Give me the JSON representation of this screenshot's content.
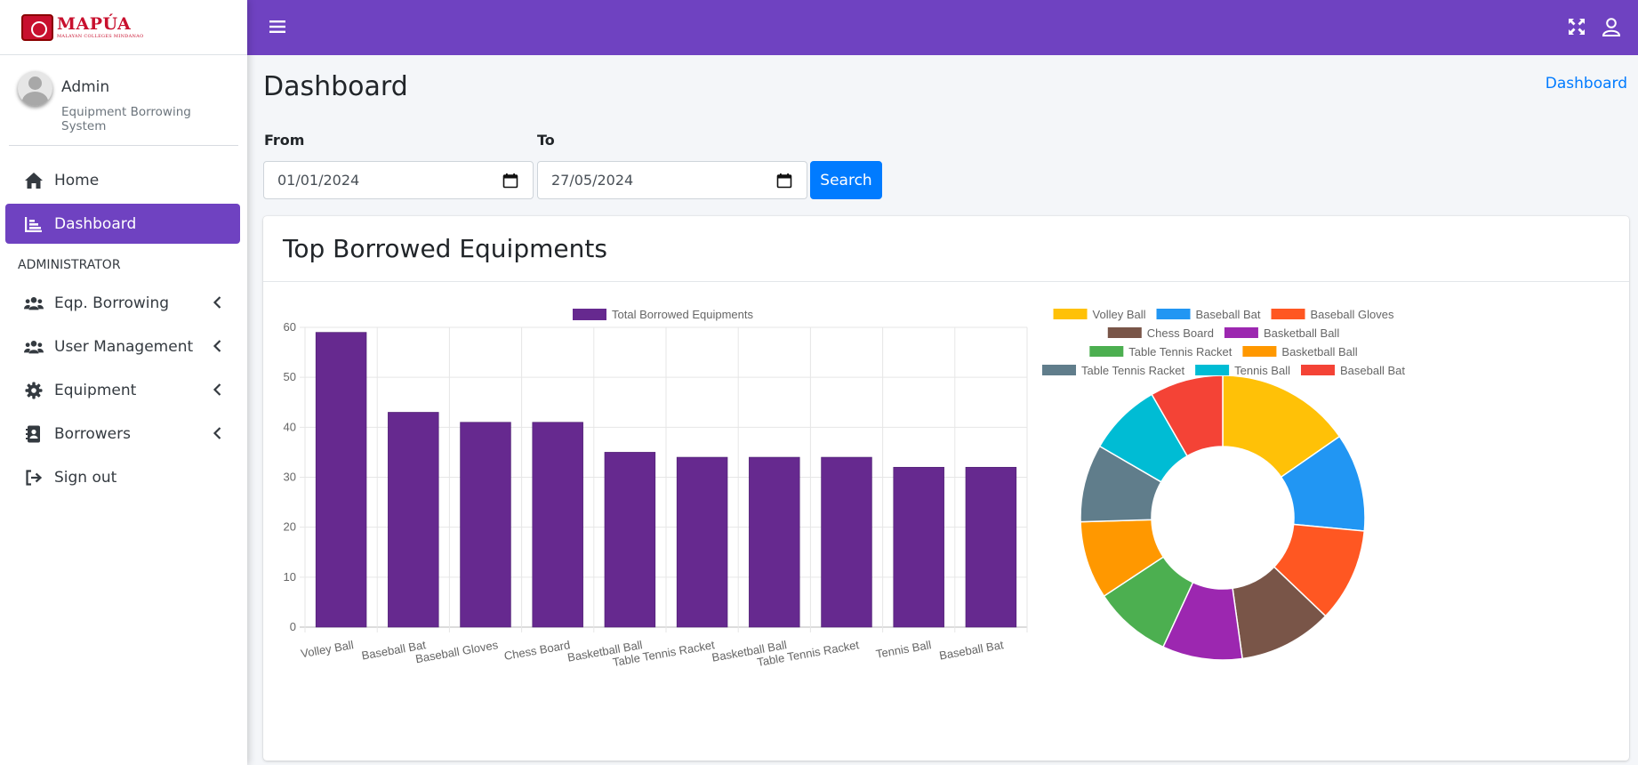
{
  "brand": {
    "name": "MAPÚA",
    "sub": "MALAYAN COLLEGES MINDANAO"
  },
  "user": {
    "name": "Admin",
    "subtitle": "Equipment Borrowing System"
  },
  "nav": {
    "home": "Home",
    "dashboard": "Dashboard",
    "section_header": "ADMINISTRATOR",
    "borrowing": "Eqp. Borrowing",
    "user_management": "User Management",
    "equipment": "Equipment",
    "borrowers": "Borrowers",
    "sign_out": "Sign out"
  },
  "page": {
    "title": "Dashboard",
    "breadcrumb": "Dashboard"
  },
  "filters": {
    "from_label": "From",
    "to_label": "To",
    "from_value": "01/01/2024",
    "to_value": "27/05/2024",
    "search_label": "Search"
  },
  "card": {
    "title": "Top Borrowed Equipments"
  },
  "colors": {
    "primary": "#6f42c1",
    "bar": "#66298f",
    "button": "#007bff"
  },
  "chart_data": [
    {
      "type": "bar",
      "legend": [
        "Total Borrowed Equipments"
      ],
      "legend_position": "top",
      "categories": [
        "Volley Ball",
        "Baseball Bat",
        "Baseball Gloves",
        "Chess Board",
        "Basketball Ball",
        "Table Tennis Racket",
        "Basketball Ball",
        "Table Tennis Racket",
        "Tennis Ball",
        "Baseball Bat"
      ],
      "series": [
        {
          "name": "Total Borrowed Equipments",
          "values": [
            59,
            43,
            41,
            41,
            35,
            34,
            34,
            34,
            32,
            32
          ]
        }
      ],
      "ylim": [
        0,
        60
      ],
      "yticks": [
        0,
        10,
        20,
        30,
        40,
        50,
        60
      ],
      "grid": true
    },
    {
      "type": "pie",
      "style": "doughnut",
      "legend_position": "top",
      "labels": [
        "Volley Ball",
        "Baseball Bat",
        "Baseball Gloves",
        "Chess Board",
        "Basketball Ball",
        "Table Tennis Racket",
        "Basketball Ball",
        "Table Tennis Racket",
        "Tennis Ball",
        "Baseball Bat"
      ],
      "values": [
        59,
        43,
        41,
        41,
        35,
        34,
        34,
        34,
        32,
        32
      ],
      "colors": [
        "#ffc107",
        "#2196f3",
        "#ff5722",
        "#795548",
        "#9c27b0",
        "#4caf50",
        "#ff9800",
        "#607d8b",
        "#00bcd4",
        "#f44336"
      ]
    }
  ]
}
